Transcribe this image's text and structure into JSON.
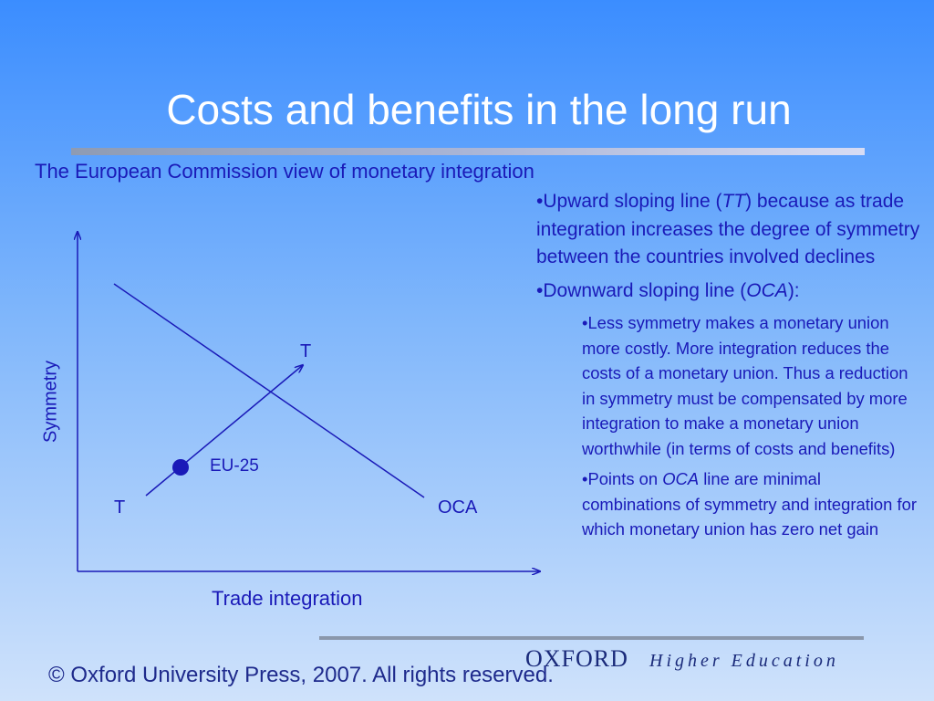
{
  "slide": {
    "title": "Costs and benefits in the long run",
    "subtitle": "The European Commission view of monetary integration"
  },
  "diagram": {
    "y_axis_label": "Symmetry",
    "x_axis_label": "Trade integration",
    "tt_label_top": "T",
    "tt_label_bottom": "T",
    "oca_label": "OCA",
    "point_label": "EU-25"
  },
  "bullets": {
    "b1_pre": "•Upward sloping line (",
    "b1_em": "TT",
    "b1_post": ") because as trade integration increases the degree of symmetry between the countries involved declines",
    "b2_pre": "•Downward sloping line (",
    "b2_em": "OCA",
    "b2_post": "):",
    "sub1": "•Less symmetry makes a monetary union more costly. More integration reduces the costs of a monetary union. Thus a reduction in symmetry must be compensated by more integration to make a monetary union worthwhile (in terms of costs and benefits)",
    "sub2_pre": "•Points on ",
    "sub2_em": "OCA",
    "sub2_post": " line are minimal combinations of symmetry and integration for which monetary union has zero net gain"
  },
  "footer": {
    "copyright": "© Oxford University Press, 2007. All rights reserved.",
    "brand": "OXFORD",
    "brand_sub": "Higher Education"
  }
}
